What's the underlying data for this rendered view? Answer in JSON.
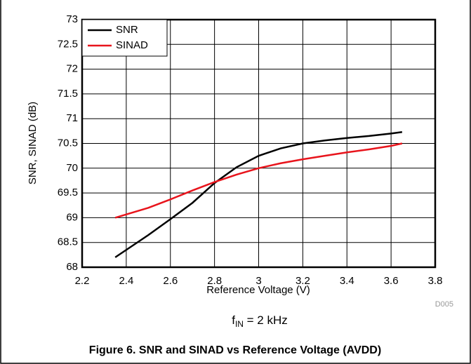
{
  "chart_data": {
    "type": "line",
    "x": [
      2.35,
      2.5,
      2.6,
      2.7,
      2.8,
      2.9,
      3.0,
      3.1,
      3.2,
      3.3,
      3.4,
      3.5,
      3.6,
      3.65
    ],
    "series": [
      {
        "name": "SNR",
        "color": "#000000",
        "values": [
          68.2,
          68.65,
          68.97,
          69.3,
          69.7,
          70.02,
          70.25,
          70.4,
          70.5,
          70.56,
          70.61,
          70.65,
          70.7,
          70.73
        ]
      },
      {
        "name": "SINAD",
        "color": "#e8141c",
        "values": [
          69.0,
          69.2,
          69.37,
          69.55,
          69.72,
          69.87,
          70.0,
          70.1,
          70.18,
          70.25,
          70.32,
          70.38,
          70.45,
          70.5
        ]
      }
    ],
    "xlim": [
      2.2,
      3.8
    ],
    "xticks": [
      2.2,
      2.4,
      2.6,
      2.8,
      3,
      3.2,
      3.4,
      3.6,
      3.8
    ],
    "ylim": [
      68,
      73
    ],
    "yticks": [
      68,
      68.5,
      69,
      69.5,
      70,
      70.5,
      71,
      71.5,
      72,
      72.5,
      73
    ],
    "grid": true,
    "legend": "upper left",
    "xlabel": "Reference Voltage (V)",
    "ylabel": "SNR, SINAD (dB)",
    "code": "D005",
    "annotation": {
      "base": "f",
      "sub": "IN",
      "rest": " = 2 kHz"
    },
    "caption": "Figure 6. SNR and SINAD vs Reference Voltage (AVDD)"
  }
}
